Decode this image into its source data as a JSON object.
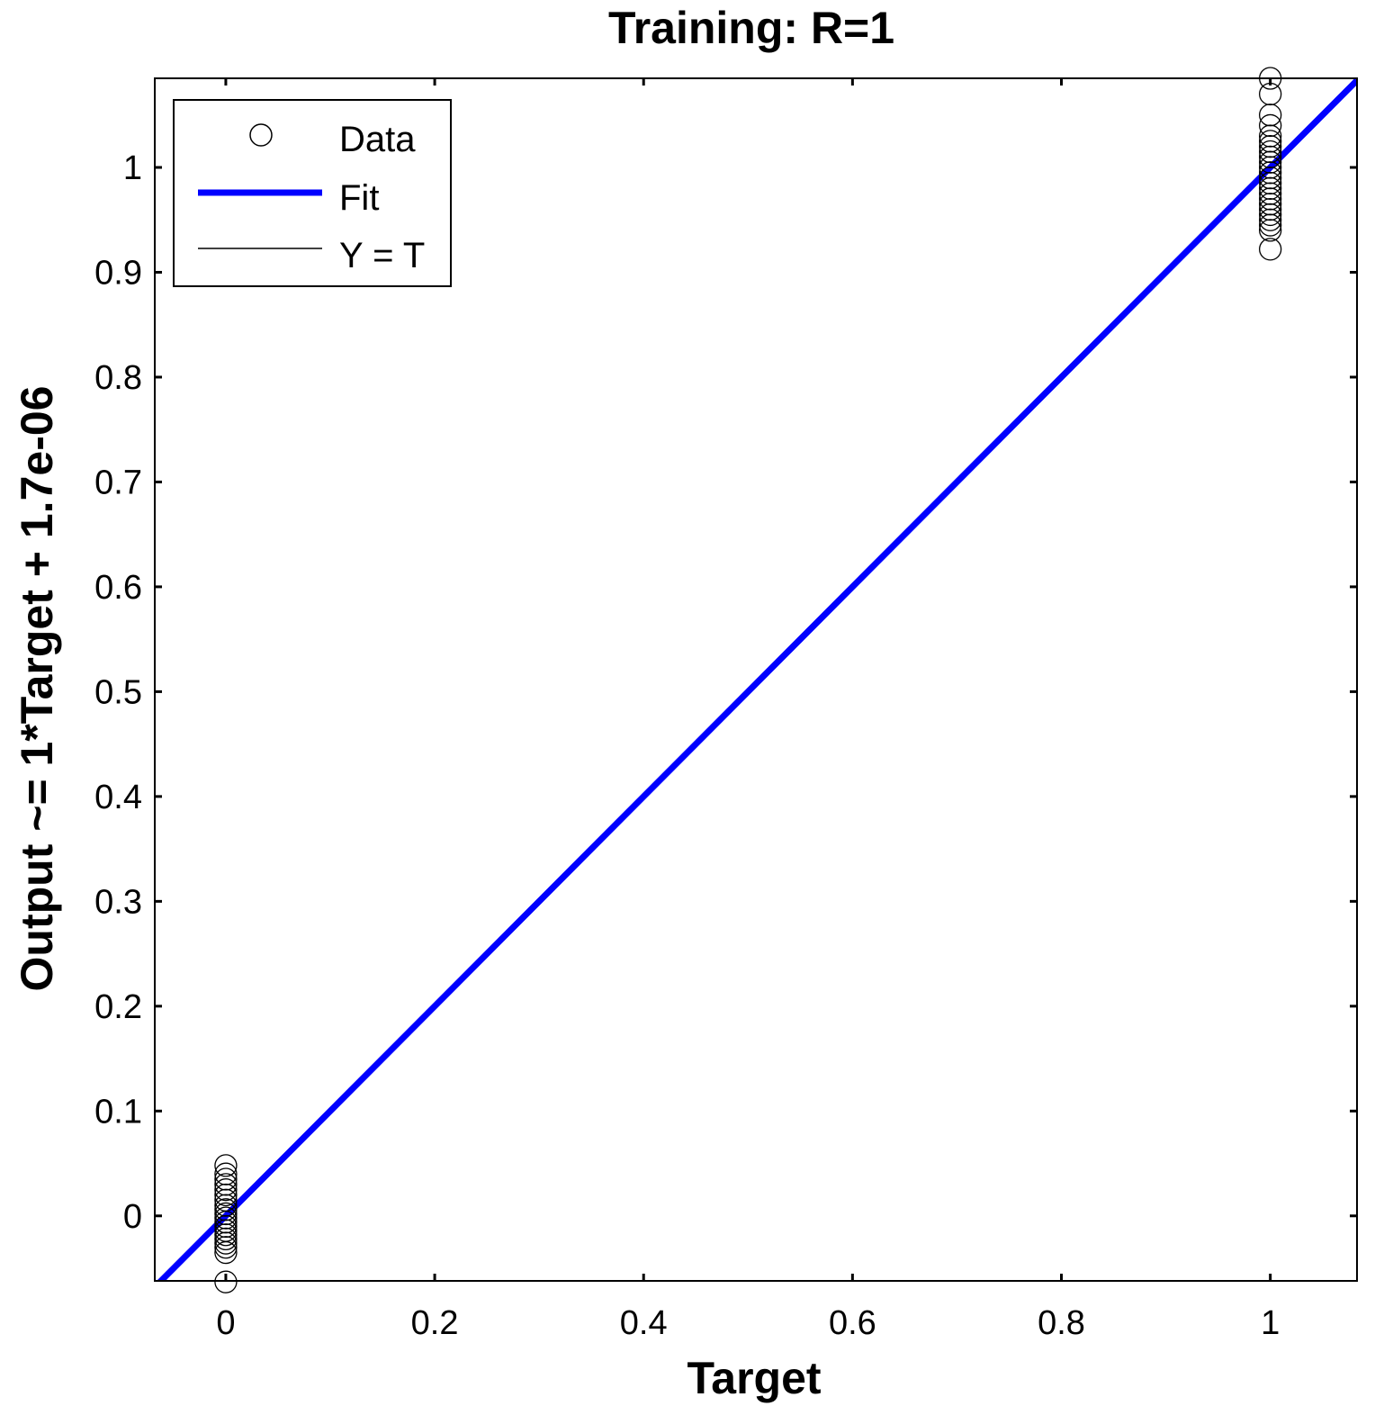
{
  "chart_data": {
    "type": "scatter",
    "title": "Training: R=1",
    "xlabel": "Target",
    "ylabel": "Output ~= 1*Target + 1.7e-06",
    "xlim": [
      -0.068,
      1.083
    ],
    "ylim": [
      -0.062,
      1.085
    ],
    "xticks": [
      0,
      0.2,
      0.4,
      0.6,
      0.8,
      1
    ],
    "xtick_labels": [
      "0",
      "0.2",
      "0.4",
      "0.6",
      "0.8",
      "1"
    ],
    "yticks": [
      0,
      0.1,
      0.2,
      0.3,
      0.4,
      0.5,
      0.6,
      0.7,
      0.8,
      0.9,
      1
    ],
    "ytick_labels": [
      "0",
      "0.1",
      "0.2",
      "0.3",
      "0.4",
      "0.5",
      "0.6",
      "0.7",
      "0.8",
      "0.9",
      "1"
    ],
    "grid": false,
    "legend_position": "top-left",
    "series": [
      {
        "name": "Data",
        "kind": "marker",
        "marker": "circle-open",
        "color": "#000000",
        "points": [
          [
            0,
            0.048
          ],
          [
            0,
            0.04
          ],
          [
            0,
            0.035
          ],
          [
            0,
            0.03
          ],
          [
            0,
            0.025
          ],
          [
            0,
            0.02
          ],
          [
            0,
            0.015
          ],
          [
            0,
            0.01
          ],
          [
            0,
            0.006
          ],
          [
            0,
            0.002
          ],
          [
            0,
            -0.002
          ],
          [
            0,
            -0.006
          ],
          [
            0,
            -0.01
          ],
          [
            0,
            -0.014
          ],
          [
            0,
            -0.018
          ],
          [
            0,
            -0.022
          ],
          [
            0,
            -0.026
          ],
          [
            0,
            -0.03
          ],
          [
            0,
            -0.035
          ],
          [
            0,
            -0.063
          ],
          [
            1,
            1.085
          ],
          [
            1,
            1.07
          ],
          [
            1,
            1.05
          ],
          [
            1,
            1.04
          ],
          [
            1,
            1.03
          ],
          [
            1,
            1.025
          ],
          [
            1,
            1.02
          ],
          [
            1,
            1.015
          ],
          [
            1,
            1.01
          ],
          [
            1,
            1.005
          ],
          [
            1,
            1.0
          ],
          [
            1,
            0.995
          ],
          [
            1,
            0.99
          ],
          [
            1,
            0.985
          ],
          [
            1,
            0.98
          ],
          [
            1,
            0.975
          ],
          [
            1,
            0.97
          ],
          [
            1,
            0.965
          ],
          [
            1,
            0.96
          ],
          [
            1,
            0.955
          ],
          [
            1,
            0.95
          ],
          [
            1,
            0.945
          ],
          [
            1,
            0.94
          ],
          [
            1,
            0.922
          ]
        ]
      },
      {
        "name": "Fit",
        "kind": "line",
        "color": "#0000ff",
        "slope": 1,
        "intercept": 1.7e-06
      },
      {
        "name": "Y = T",
        "kind": "line",
        "color": "#000000",
        "slope": 1,
        "intercept": 0
      }
    ]
  }
}
